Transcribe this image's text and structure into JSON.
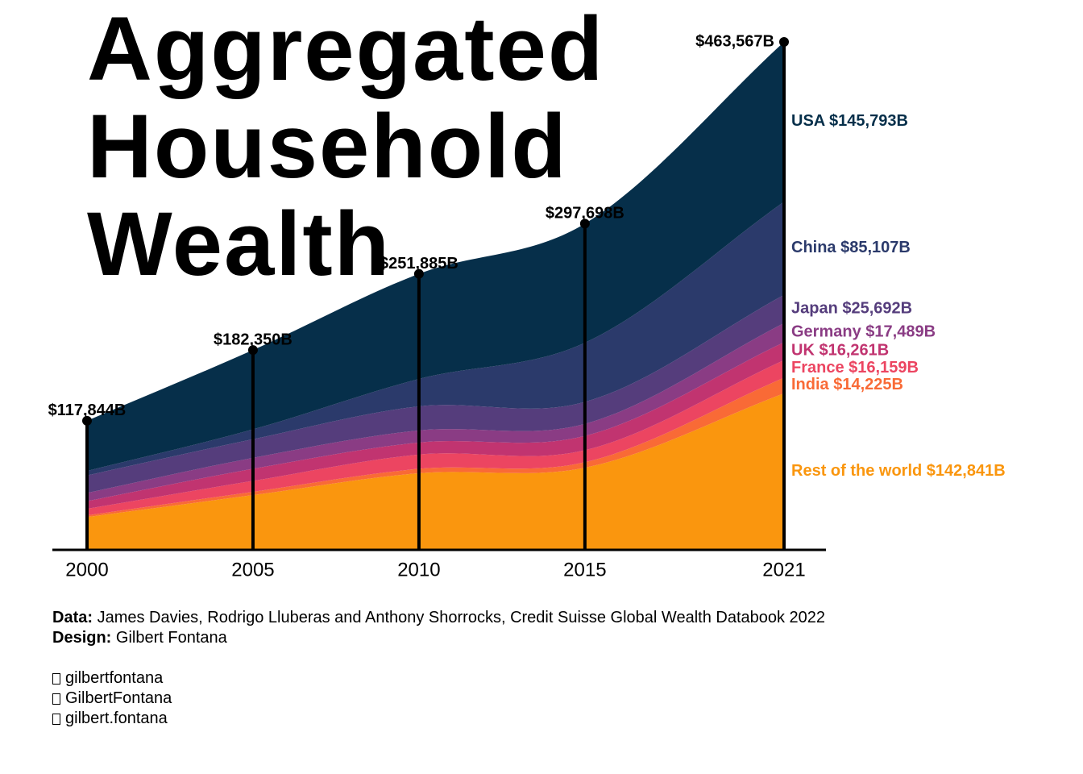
{
  "chart_data": {
    "type": "area",
    "title": "Aggregated Household Wealth",
    "x": [
      2000,
      2005,
      2010,
      2015,
      2021
    ],
    "xlim": [
      2000,
      2021
    ],
    "xticks": [
      2000,
      2005,
      2010,
      2015,
      2021
    ],
    "ylim": [
      0,
      463567
    ],
    "stacked": true,
    "series": [
      {
        "name": "Rest of the world",
        "color": "#fa960e",
        "values": [
          30000,
          50000,
          70000,
          75000,
          142841
        ],
        "value_labels": [
          null,
          null,
          null,
          null,
          "$142,841B"
        ]
      },
      {
        "name": "India",
        "color": "#f96a36",
        "values": [
          1500,
          3000,
          4000,
          5000,
          14225
        ],
        "value_labels": [
          null,
          null,
          null,
          null,
          "$14,225B"
        ]
      },
      {
        "name": "France",
        "color": "#ec4561",
        "values": [
          6000,
          10000,
          13000,
          11000,
          16159
        ],
        "value_labels": [
          null,
          null,
          null,
          null,
          "$16,159B"
        ]
      },
      {
        "name": "UK",
        "color": "#c13470",
        "values": [
          7000,
          11000,
          11000,
          13000,
          16261
        ],
        "value_labels": [
          null,
          null,
          null,
          null,
          "$16,261B"
        ]
      },
      {
        "name": "Germany",
        "color": "#8a3c84",
        "values": [
          7500,
          10000,
          11000,
          11000,
          17489
        ],
        "value_labels": [
          null,
          null,
          null,
          null,
          "$17,489B"
        ]
      },
      {
        "name": "Japan",
        "color": "#553d7c",
        "values": [
          16000,
          17000,
          22000,
          20000,
          25692
        ],
        "value_labels": [
          null,
          null,
          null,
          null,
          "$25,692B"
        ]
      },
      {
        "name": "China",
        "color": "#2b3a6b",
        "values": [
          4000,
          9000,
          25000,
          54000,
          85107
        ],
        "value_labels": [
          null,
          null,
          null,
          null,
          "$85,107B"
        ]
      },
      {
        "name": "USA",
        "color": "#062f4a",
        "values": [
          45844,
          72350,
          95885,
          108698,
          145793
        ],
        "value_labels": [
          null,
          null,
          null,
          null,
          "$145,793B"
        ]
      }
    ],
    "totals": {
      "values": [
        117844,
        182350,
        251885,
        297698,
        463567
      ],
      "value_labels": [
        "$117,844B",
        "$182,350B",
        "$251,885B",
        "$297,698B",
        "$463,567B"
      ]
    }
  },
  "footer": {
    "data_label": "Data:",
    "data_text": "James Davies, Rodrigo Lluberas and Anthony Shorrocks, Credit Suisse Global Wealth Databook 2022",
    "design_label": "Design:",
    "design_text": "Gilbert Fontana",
    "social": [
      "gilbertfontana",
      "GilbertFontana",
      "gilbert.fontana"
    ]
  }
}
